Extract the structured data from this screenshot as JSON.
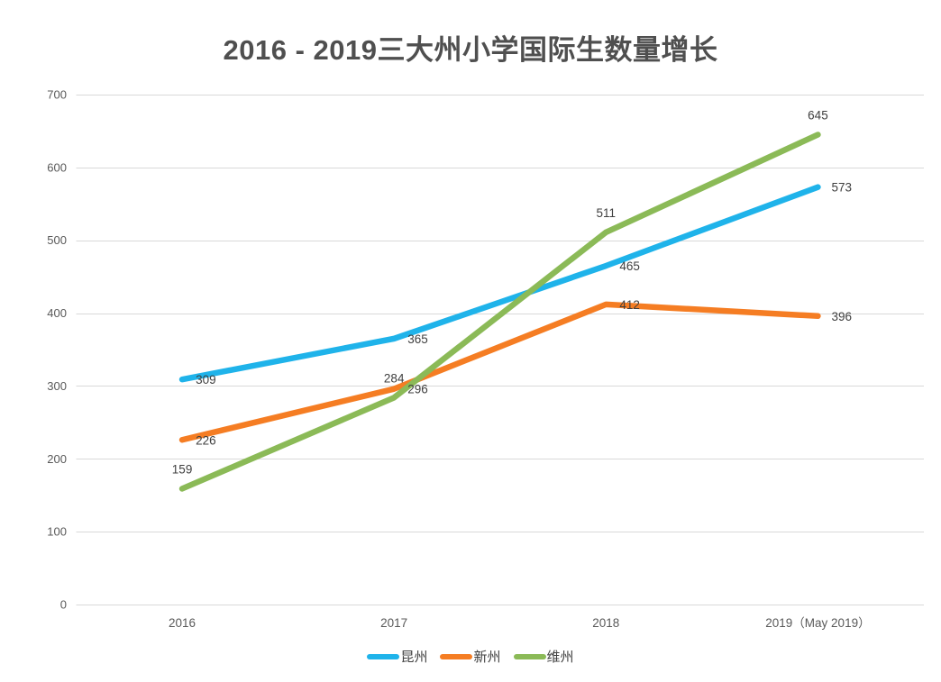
{
  "title": "2016 - 2019三大州小学国际生数量增长",
  "chart_data": {
    "type": "line",
    "title": "2016 - 2019三大州小学国际生数量增长",
    "categories": [
      "2016",
      "2017",
      "2018",
      "2019（May 2019）"
    ],
    "series": [
      {
        "name": "昆州",
        "color": "#1FB3EA",
        "values": [
          309,
          365,
          465,
          573
        ],
        "label_position": "right"
      },
      {
        "name": "新州",
        "color": "#F57D23",
        "values": [
          226,
          296,
          412,
          396
        ],
        "label_position": "right"
      },
      {
        "name": "维州",
        "color": "#8BBA57",
        "values": [
          159,
          284,
          511,
          645
        ],
        "label_position": "above"
      }
    ],
    "xlabel": "",
    "ylabel": "",
    "ylim": [
      0,
      700
    ],
    "yticks": [
      0,
      100,
      200,
      300,
      400,
      500,
      600,
      700
    ],
    "grid": true,
    "legend_position": "bottom",
    "colors": {
      "gridline": "#D9D9D9",
      "axis_label": "#595959",
      "data_label": "#3F3F3F",
      "title": "#4F4F4F",
      "background": "#FFFFFF"
    }
  }
}
